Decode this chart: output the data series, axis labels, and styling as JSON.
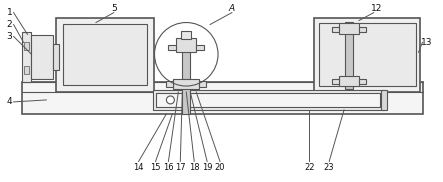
{
  "bg_color": "#ffffff",
  "line_color": "#555555",
  "line_width": 0.8,
  "thick_line": 1.2,
  "label_color": "#111111",
  "label_fontsize": 6.5,
  "fig_width": 4.43,
  "fig_height": 1.82,
  "dpi": 100
}
